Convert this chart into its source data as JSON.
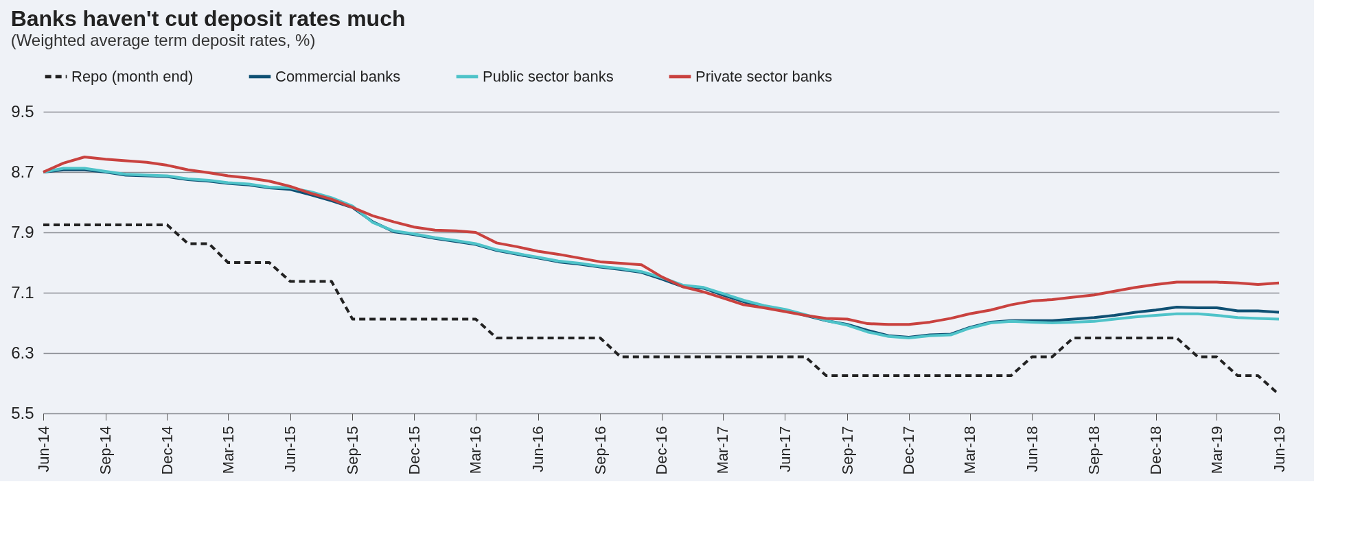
{
  "chart_data": {
    "type": "line",
    "title": "Banks haven't cut deposit rates much",
    "subtitle": "(Weighted average term deposit rates, %)",
    "x": [
      "2014-06",
      "2014-07",
      "2014-08",
      "2014-09",
      "2014-10",
      "2014-11",
      "2014-12",
      "2015-01",
      "2015-02",
      "2015-03",
      "2015-04",
      "2015-05",
      "2015-06",
      "2015-07",
      "2015-08",
      "2015-09",
      "2015-10",
      "2015-11",
      "2015-12",
      "2016-01",
      "2016-02",
      "2016-03",
      "2016-04",
      "2016-05",
      "2016-06",
      "2016-07",
      "2016-08",
      "2016-09",
      "2016-10",
      "2016-11",
      "2016-12",
      "2017-01",
      "2017-02",
      "2017-03",
      "2017-04",
      "2017-05",
      "2017-06",
      "2017-07",
      "2017-08",
      "2017-09",
      "2017-10",
      "2017-11",
      "2017-12",
      "2018-01",
      "2018-02",
      "2018-03",
      "2018-04",
      "2018-05",
      "2018-06",
      "2018-07",
      "2018-08",
      "2018-09",
      "2018-10",
      "2018-11",
      "2018-12",
      "2019-01",
      "2019-02",
      "2019-03",
      "2019-04",
      "2019-05",
      "2019-06"
    ],
    "legend": "top left",
    "grid": "y",
    "line_style": "solid",
    "marker": "none",
    "xlim": [
      "2014-06",
      "2019-06"
    ],
    "xticks": [
      {
        "value": "2014-06",
        "label": "Jun-14"
      },
      {
        "value": "2014-09",
        "label": "Sep-14"
      },
      {
        "value": "2014-12",
        "label": "Dec-14"
      },
      {
        "value": "2015-03",
        "label": "Mar-15"
      },
      {
        "value": "2015-06",
        "label": "Jun-15"
      },
      {
        "value": "2015-09",
        "label": "Sep-15"
      },
      {
        "value": "2015-12",
        "label": "Dec-15"
      },
      {
        "value": "2016-03",
        "label": "Mar-16"
      },
      {
        "value": "2016-06",
        "label": "Jun-16"
      },
      {
        "value": "2016-09",
        "label": "Sep-16"
      },
      {
        "value": "2016-12",
        "label": "Dec-16"
      },
      {
        "value": "2017-03",
        "label": "Mar-17"
      },
      {
        "value": "2017-06",
        "label": "Jun-17"
      },
      {
        "value": "2017-09",
        "label": "Sep-17"
      },
      {
        "value": "2017-12",
        "label": "Dec-17"
      },
      {
        "value": "2018-03",
        "label": "Mar-18"
      },
      {
        "value": "2018-06",
        "label": "Jun-18"
      },
      {
        "value": "2018-09",
        "label": "Sep-18"
      },
      {
        "value": "2018-12",
        "label": "Dec-18"
      },
      {
        "value": "2019-03",
        "label": "Mar-19"
      },
      {
        "value": "2019-06",
        "label": "Jun-19"
      }
    ],
    "ylim": [
      5.5,
      9.5
    ],
    "yticks": [
      5.5,
      6.3,
      7.1,
      7.9,
      8.7,
      9.5
    ],
    "series": [
      {
        "name": "Repo (month end)",
        "color": "#222222",
        "line_style": "dashed",
        "values": [
          8.0,
          8.0,
          8.0,
          8.0,
          8.0,
          8.0,
          8.0,
          7.75,
          7.75,
          7.5,
          7.5,
          7.5,
          7.25,
          7.25,
          7.25,
          6.75,
          6.75,
          6.75,
          6.75,
          6.75,
          6.75,
          6.75,
          6.5,
          6.5,
          6.5,
          6.5,
          6.5,
          6.5,
          6.25,
          6.25,
          6.25,
          6.25,
          6.25,
          6.25,
          6.25,
          6.25,
          6.25,
          6.25,
          6.0,
          6.0,
          6.0,
          6.0,
          6.0,
          6.0,
          6.0,
          6.0,
          6.0,
          6.0,
          6.25,
          6.25,
          6.5,
          6.5,
          6.5,
          6.5,
          6.5,
          6.5,
          6.25,
          6.25,
          6.0,
          6.0,
          5.75
        ]
      },
      {
        "name": "Commercial banks",
        "color": "#0f5073",
        "values": [
          8.7,
          8.73,
          8.73,
          8.7,
          8.66,
          8.65,
          8.64,
          8.6,
          8.58,
          8.55,
          8.53,
          8.49,
          8.47,
          8.4,
          8.32,
          8.23,
          8.04,
          7.91,
          7.87,
          7.82,
          7.78,
          7.74,
          7.66,
          7.61,
          7.56,
          7.51,
          7.48,
          7.44,
          7.41,
          7.37,
          7.28,
          7.18,
          7.16,
          7.07,
          6.98,
          6.92,
          6.87,
          6.8,
          6.73,
          6.68,
          6.6,
          6.53,
          6.51,
          6.54,
          6.55,
          6.64,
          6.71,
          6.73,
          6.73,
          6.73,
          6.75,
          6.77,
          6.8,
          6.84,
          6.87,
          6.91,
          6.9,
          6.9,
          6.86,
          6.86,
          6.84
        ]
      },
      {
        "name": "Public sector banks",
        "color": "#4fc3c9",
        "values": [
          8.7,
          8.75,
          8.75,
          8.71,
          8.67,
          8.66,
          8.65,
          8.61,
          8.59,
          8.56,
          8.54,
          8.5,
          8.49,
          8.44,
          8.36,
          8.25,
          8.03,
          7.92,
          7.88,
          7.83,
          7.79,
          7.75,
          7.67,
          7.62,
          7.57,
          7.52,
          7.49,
          7.45,
          7.42,
          7.38,
          7.3,
          7.2,
          7.17,
          7.09,
          7.0,
          6.93,
          6.88,
          6.81,
          6.73,
          6.67,
          6.58,
          6.52,
          6.5,
          6.53,
          6.54,
          6.63,
          6.7,
          6.72,
          6.71,
          6.7,
          6.71,
          6.72,
          6.75,
          6.78,
          6.8,
          6.82,
          6.82,
          6.8,
          6.77,
          6.76,
          6.75
        ]
      },
      {
        "name": "Private sector banks",
        "color": "#c9423f",
        "values": [
          8.7,
          8.82,
          8.9,
          8.87,
          8.85,
          8.83,
          8.79,
          8.73,
          8.69,
          8.65,
          8.62,
          8.58,
          8.51,
          8.42,
          8.34,
          8.23,
          8.12,
          8.04,
          7.97,
          7.93,
          7.92,
          7.9,
          7.76,
          7.71,
          7.65,
          7.61,
          7.56,
          7.51,
          7.49,
          7.47,
          7.31,
          7.18,
          7.11,
          7.03,
          6.94,
          6.9,
          6.85,
          6.8,
          6.76,
          6.75,
          6.69,
          6.68,
          6.68,
          6.71,
          6.76,
          6.82,
          6.87,
          6.94,
          6.99,
          7.01,
          7.04,
          7.07,
          7.12,
          7.17,
          7.21,
          7.24,
          7.24,
          7.24,
          7.23,
          7.21,
          7.23
        ]
      }
    ]
  }
}
